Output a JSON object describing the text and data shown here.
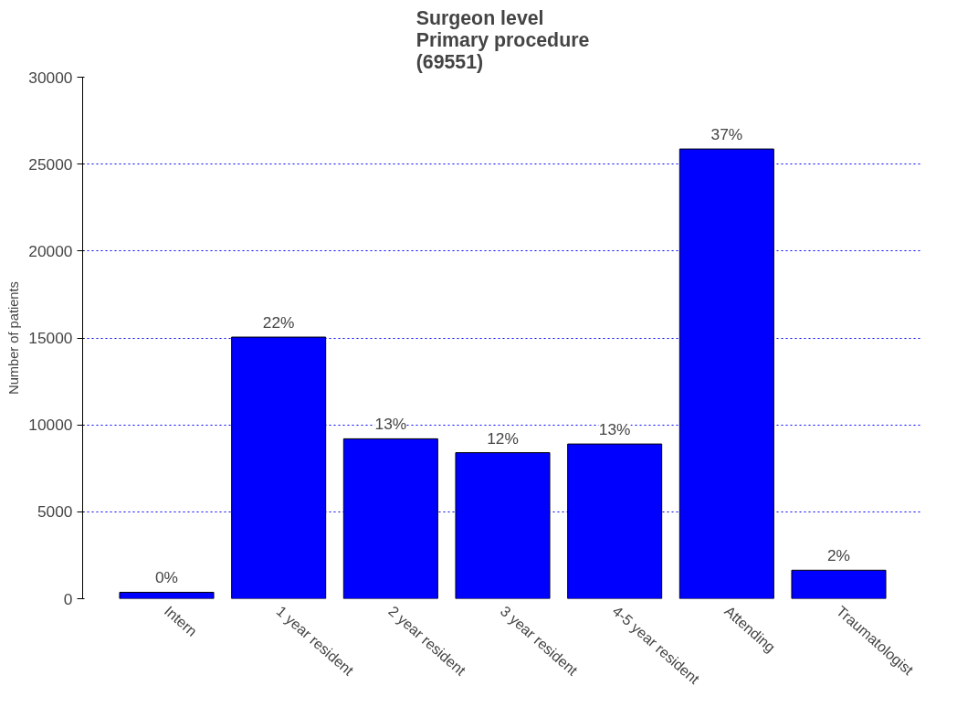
{
  "chart_data": {
    "type": "bar",
    "title": "Surgeon level\nPrimary procedure\n(69551)",
    "ylabel": "Number of patients",
    "categories": [
      "Intern",
      "1 year resident",
      "2 year resident",
      "3 year resident",
      "4-5 year resident",
      "Attending",
      "Traumatologist"
    ],
    "values": [
      370,
      15050,
      9200,
      8400,
      8900,
      25870,
      1640
    ],
    "annotations": [
      {
        "text": "0%",
        "x": "Intern",
        "y": 370
      },
      {
        "text": "22%",
        "x": "1 year resident",
        "y": 15050
      },
      {
        "text": "13%",
        "x": "2 year resident",
        "y": 9200
      },
      {
        "text": "12%",
        "x": "3 year resident",
        "y": 8400
      },
      {
        "text": "13%",
        "x": "4-5 year resident",
        "y": 8900
      },
      {
        "text": "37%",
        "x": "Attending",
        "y": 25870
      },
      {
        "text": "2%",
        "x": "Traumatologist",
        "y": 1640
      }
    ],
    "color": "#0000ff",
    "ylim": [
      0,
      30000
    ],
    "yticks": [
      0,
      5000,
      10000,
      15000,
      20000,
      25000,
      30000
    ],
    "grid": "y"
  }
}
